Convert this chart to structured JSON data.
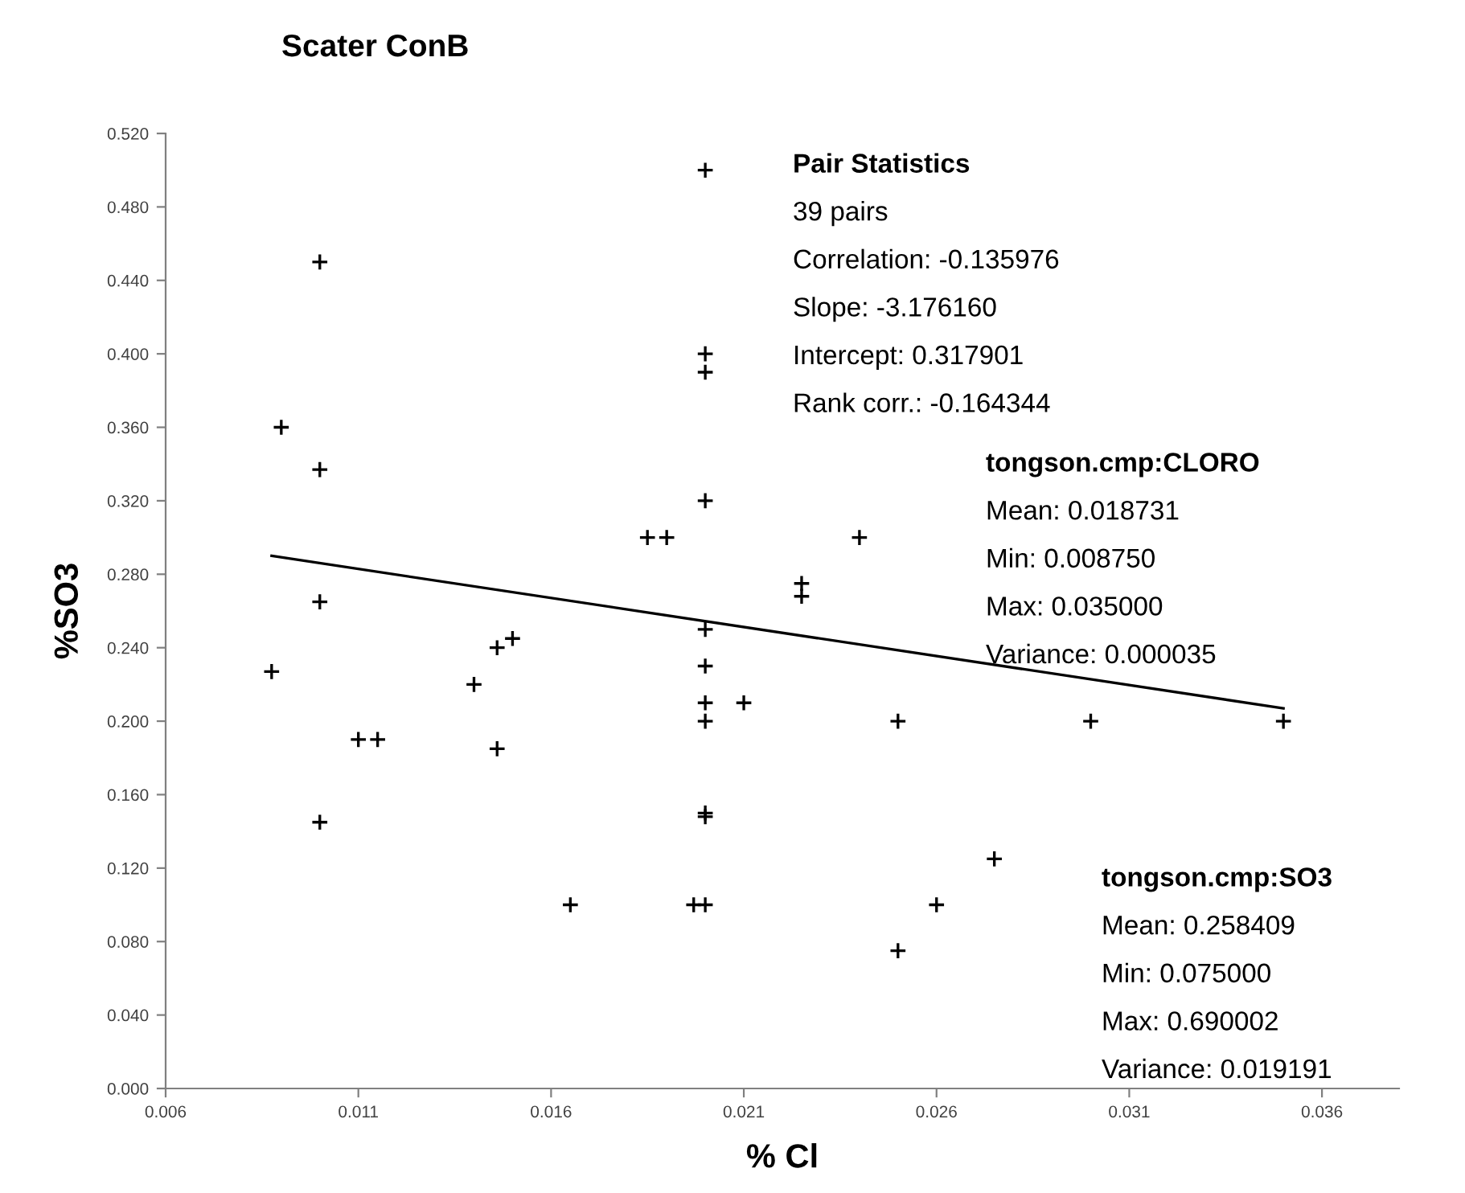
{
  "chart_data": {
    "type": "scatter",
    "title": "Scater ConB",
    "xlabel": "% Cl",
    "ylabel": "%SO3",
    "xlim": [
      0.006,
      0.038
    ],
    "xticks": [
      0.006,
      0.011,
      0.016,
      0.021,
      0.026,
      0.031,
      0.036
    ],
    "ylim": [
      0,
      0.52
    ],
    "yticks": [
      {
        "value": 0,
        "label": "0.000"
      },
      {
        "value": 0.04,
        "label": "0.040"
      },
      {
        "value": 0.08,
        "label": "0.080"
      },
      {
        "value": 0.12,
        "label": "0.120"
      },
      {
        "value": 0.16,
        "label": "0.160"
      },
      {
        "value": 0.2,
        "label": "0.200"
      },
      {
        "value": 0.24,
        "label": "0.240"
      },
      {
        "value": 0.28,
        "label": "0.280"
      },
      {
        "value": 0.32,
        "label": "0.320"
      },
      {
        "value": 0.36,
        "label": "0.360"
      },
      {
        "value": 0.4,
        "label": "0.400"
      },
      {
        "value": 0.44,
        "label": "0.440"
      },
      {
        "value": 0.48,
        "label": "0.480"
      },
      {
        "value": 0.52,
        "label": "0.520"
      }
    ],
    "grid": false,
    "legend": false,
    "series": [
      {
        "marker": "cross",
        "color": "#000000",
        "x": [
          0.02,
          0.01,
          0.02,
          0.02,
          0.009,
          0.01,
          0.02,
          0.0185,
          0.019,
          0.01,
          0.02,
          0.0146,
          0.015,
          0.0225,
          0.0225,
          0.024,
          0.00875,
          0.014,
          0.02,
          0.02,
          0.021,
          0.02,
          0.011,
          0.0115,
          0.0146,
          0.01,
          0.02,
          0.02,
          0.0165,
          0.0197,
          0.02,
          0.025,
          0.03,
          0.035,
          0.0275,
          0.026,
          0.025
        ],
        "values": [
          0.5,
          0.45,
          0.4,
          0.39,
          0.36,
          0.337,
          0.32,
          0.3,
          0.3,
          0.265,
          0.25,
          0.24,
          0.245,
          0.275,
          0.268,
          0.3,
          0.227,
          0.22,
          0.23,
          0.21,
          0.21,
          0.2,
          0.19,
          0.19,
          0.185,
          0.145,
          0.15,
          0.148,
          0.1,
          0.1,
          0.1,
          0.2,
          0.2,
          0.2,
          0.125,
          0.1,
          0.075
        ]
      },
      {
        "type": "line",
        "color": "#000000",
        "x": [
          0.00875,
          0.035
        ],
        "values": [
          0.29,
          0.207
        ]
      }
    ],
    "annotations": [
      "Pair Statistics\n39 pairs\nCorrelation: -0.135976\nSlope: -3.176160\nIntercept: 0.317901\nRank corr.: -0.164344",
      "tongson.cmp:CLORO\nMean: 0.018731\nMin: 0.008750\nMax: 0.035000\nVariance: 0.000035",
      "tongson.cmp:SO3\nMean: 0.258409\nMin: 0.075000\nMax: 0.690002\nVariance: 0.019191"
    ]
  }
}
